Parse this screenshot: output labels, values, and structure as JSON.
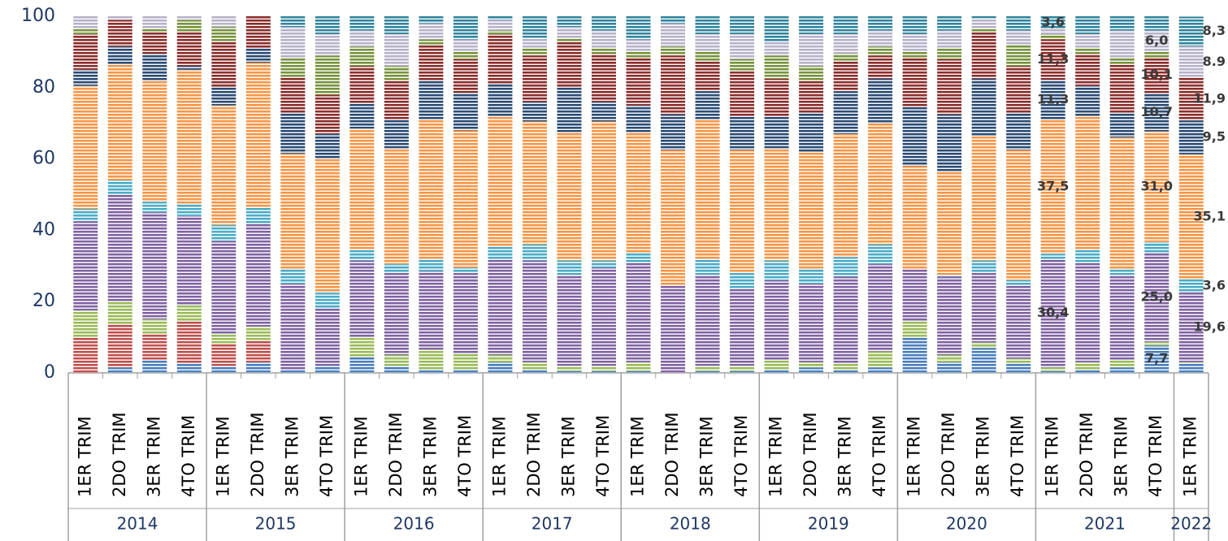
{
  "chart_data": {
    "type": "stacked_bar",
    "groups": [
      {
        "name": "2014",
        "categories": [
          "1ER TRIM",
          "2DO TRIM",
          "3ER TRIM",
          "4TO TRIM"
        ]
      },
      {
        "name": "2015",
        "categories": [
          "1ER TRIM",
          "2DO TRIM",
          "3ER TRIM",
          "4TO TRIM"
        ]
      },
      {
        "name": "2016",
        "categories": [
          "1ER TRIM",
          "2DO TRIM",
          "3ER TRIM",
          "4TO TRIM"
        ]
      },
      {
        "name": "2017",
        "categories": [
          "1ER TRIM",
          "2DO TRIM",
          "3ER TRIM",
          "4TO TRIM"
        ]
      },
      {
        "name": "2018",
        "categories": [
          "1ER TRIM",
          "2DO TRIM",
          "3ER TRIM",
          "4TO TRIM"
        ]
      },
      {
        "name": "2019",
        "categories": [
          "1ER TRIM",
          "2DO TRIM",
          "3ER TRIM",
          "4TO TRIM"
        ]
      },
      {
        "name": "2020",
        "categories": [
          "1ER TRIM",
          "2DO TRIM",
          "3ER TRIM",
          "4TO TRIM"
        ]
      },
      {
        "name": "2021",
        "categories": [
          "1ER TRIM",
          "2DO TRIM",
          "3ER TRIM",
          "4TO TRIM"
        ]
      },
      {
        "name": "2022",
        "categories": [
          "1ER TRIM"
        ]
      }
    ],
    "ylim": [
      0,
      100
    ],
    "yticks": [
      0,
      20,
      40,
      60,
      80,
      100
    ],
    "grid": false,
    "series": [
      {
        "color": "#4a7ebb",
        "values": [
          0,
          1.5,
          3.5,
          2.5,
          2,
          3,
          1,
          2,
          4.5,
          2,
          1,
          1,
          3,
          1,
          0.5,
          0.5,
          0.5,
          0,
          0.5,
          0.5,
          1,
          1.5,
          1,
          1.5,
          10,
          3,
          7,
          2.5,
          0.5,
          1,
          1.5,
          7.7,
          2.5
        ],
        "value_labels": [
          null,
          null,
          null,
          null,
          null,
          null,
          null,
          null,
          null,
          null,
          null,
          null,
          null,
          null,
          null,
          null,
          null,
          null,
          null,
          null,
          null,
          null,
          null,
          null,
          null,
          null,
          null,
          null,
          null,
          null,
          null,
          "7,7",
          null
        ]
      },
      {
        "color": "#c0504d",
        "values": [
          10,
          12,
          7.5,
          12,
          6,
          6,
          0,
          0,
          0,
          0,
          0,
          0,
          0,
          0,
          0,
          0,
          0,
          0,
          0,
          0,
          0,
          0,
          0,
          0,
          0,
          0,
          0,
          0,
          0,
          0,
          0,
          0,
          0
        ]
      },
      {
        "color": "#9bbb59",
        "values": [
          7.5,
          6.5,
          4,
          4.5,
          3,
          4,
          0,
          0,
          5.5,
          3,
          5.5,
          4.5,
          2,
          2,
          1.5,
          1.5,
          2.5,
          0,
          1.5,
          1.5,
          2.5,
          1.5,
          1.5,
          4.5,
          4.5,
          2,
          1.5,
          1.5,
          1,
          2,
          2,
          1,
          0.5
        ]
      },
      {
        "color": "#8064a2",
        "values": [
          25,
          30,
          30,
          25,
          26,
          29,
          24,
          16,
          21.5,
          23,
          22,
          22.5,
          27,
          28.5,
          25.5,
          27.5,
          28,
          24.5,
          25.5,
          21.5,
          22.5,
          22,
          24.5,
          24.5,
          14.5,
          22,
          19.5,
          20.5,
          30.4,
          28,
          24,
          25,
          19.6
        ],
        "value_labels": [
          null,
          null,
          null,
          null,
          null,
          null,
          null,
          null,
          null,
          null,
          null,
          null,
          null,
          null,
          null,
          null,
          null,
          null,
          null,
          null,
          null,
          null,
          null,
          null,
          null,
          null,
          null,
          null,
          "30,4",
          null,
          null,
          "25,0",
          "19,6"
        ]
      },
      {
        "color": "#4bacc6",
        "values": [
          3.5,
          4,
          3,
          3.5,
          4.5,
          4.5,
          4,
          4.5,
          3,
          2.5,
          3.5,
          1.5,
          3.5,
          4.5,
          4,
          2,
          2.5,
          0,
          4.5,
          4.5,
          5.5,
          4,
          5.5,
          5.5,
          0,
          0.5,
          3.5,
          1.5,
          1.5,
          3.5,
          1.5,
          3,
          3.6
        ],
        "value_labels": [
          null,
          null,
          null,
          null,
          null,
          null,
          null,
          null,
          null,
          null,
          null,
          null,
          null,
          null,
          null,
          null,
          null,
          null,
          null,
          null,
          null,
          null,
          null,
          null,
          null,
          null,
          null,
          null,
          null,
          null,
          null,
          null,
          "3,6"
        ]
      },
      {
        "color": "#f79646",
        "values": [
          34.5,
          32.5,
          34,
          37.5,
          33.5,
          40.5,
          32.5,
          37.5,
          34,
          32.5,
          39,
          38.5,
          36.5,
          34.5,
          36,
          39,
          34,
          38,
          39,
          34.5,
          31.5,
          33,
          34.5,
          34,
          29,
          29,
          35,
          36.5,
          37.5,
          37.5,
          37,
          31,
          35.1
        ],
        "value_labels": [
          null,
          null,
          null,
          null,
          null,
          null,
          null,
          null,
          null,
          null,
          null,
          null,
          null,
          null,
          null,
          null,
          null,
          null,
          null,
          null,
          null,
          null,
          null,
          null,
          null,
          null,
          null,
          null,
          "37,5",
          null,
          null,
          "31,0",
          "35,1"
        ]
      },
      {
        "color": "#2c4d75",
        "values": [
          4.5,
          5,
          7.5,
          1,
          5,
          4,
          11.5,
          7,
          7,
          8,
          11,
          10.5,
          9,
          5.5,
          12.5,
          5.5,
          7.5,
          10,
          8,
          9.5,
          9,
          11,
          12,
          12.5,
          16.5,
          16,
          16,
          10.5,
          11.3,
          8.5,
          7,
          10.7,
          9.5
        ],
        "value_labels": [
          null,
          null,
          null,
          null,
          null,
          null,
          null,
          null,
          null,
          null,
          null,
          null,
          null,
          null,
          null,
          null,
          null,
          null,
          null,
          null,
          null,
          null,
          null,
          null,
          null,
          null,
          null,
          null,
          "11,3",
          null,
          null,
          "10,7",
          "9,5"
        ]
      },
      {
        "color": "#8b2e2b",
        "values": [
          10,
          7.5,
          6,
          9.5,
          13,
          9,
          10,
          11,
          10.5,
          11,
          10,
          9.5,
          14,
          13,
          13,
          13.5,
          13.5,
          16.5,
          8.5,
          12.5,
          10.5,
          9,
          8.5,
          6.5,
          14,
          15.5,
          13,
          13,
          11.3,
          9,
          13.5,
          10.1,
          11.9
        ],
        "value_labels": [
          null,
          null,
          null,
          null,
          null,
          null,
          null,
          null,
          null,
          null,
          null,
          null,
          null,
          null,
          null,
          null,
          null,
          null,
          null,
          null,
          null,
          null,
          null,
          null,
          null,
          null,
          null,
          null,
          "11,3",
          null,
          null,
          "10,1",
          "11,9"
        ]
      },
      {
        "color": "#77933c",
        "values": [
          1.5,
          0,
          1,
          3.5,
          4,
          0,
          5.5,
          11,
          5.5,
          4,
          1.5,
          2,
          1,
          2,
          1,
          1.5,
          1.5,
          2.5,
          2.5,
          3.5,
          6.5,
          4,
          2,
          2.5,
          1.5,
          3,
          1,
          6,
          1.5,
          1.5,
          2,
          1.5,
          0
        ]
      },
      {
        "color": "#b7b1c9",
        "values": [
          3.5,
          1,
          3.5,
          1,
          3,
          0,
          8.5,
          6,
          4.5,
          9,
          4.5,
          3.5,
          3,
          3,
          3,
          5,
          3.5,
          6.5,
          5,
          7,
          4,
          9,
          5.5,
          4.5,
          5,
          5,
          3,
          4,
          1.4,
          4,
          7.5,
          6,
          8.9
        ],
        "value_labels": [
          null,
          null,
          null,
          null,
          null,
          null,
          null,
          null,
          null,
          null,
          null,
          null,
          null,
          null,
          null,
          null,
          null,
          null,
          null,
          null,
          null,
          null,
          null,
          null,
          null,
          null,
          null,
          null,
          null,
          null,
          null,
          "6,0",
          "8.9"
        ]
      },
      {
        "color": "#31859c",
        "values": [
          0,
          0,
          0,
          0,
          0,
          0,
          3,
          5,
          4,
          5,
          2,
          6.5,
          1,
          6,
          3,
          4,
          6.5,
          2,
          5,
          5,
          7,
          5,
          5,
          4,
          5,
          4,
          0.5,
          4,
          3.6,
          5,
          4,
          4,
          8.3
        ],
        "value_labels": [
          null,
          null,
          null,
          null,
          null,
          null,
          null,
          null,
          null,
          null,
          null,
          null,
          null,
          null,
          null,
          null,
          null,
          null,
          null,
          null,
          null,
          null,
          null,
          null,
          null,
          null,
          null,
          null,
          "3,6",
          null,
          null,
          null,
          "8,3"
        ]
      }
    ]
  }
}
